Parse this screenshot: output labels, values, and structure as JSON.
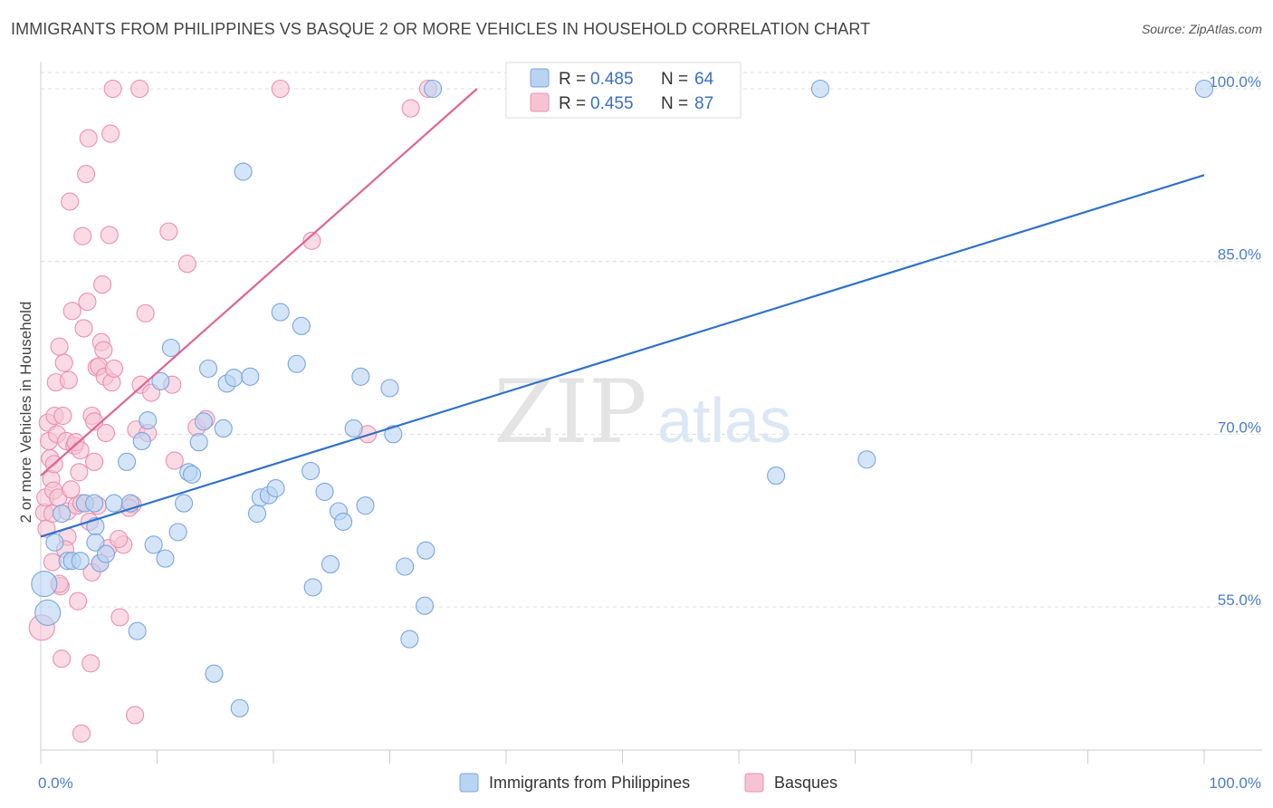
{
  "title": "IMMIGRANTS FROM PHILIPPINES VS BASQUE 2 OR MORE VEHICLES IN HOUSEHOLD CORRELATION CHART",
  "source": "Source: ZipAtlas.com",
  "watermark": {
    "zip": "ZIP",
    "atlas": "atlas"
  },
  "colors": {
    "blue_fill": "#b9d3f3",
    "blue_stroke": "#7aa6de",
    "blue_line": "#2f72c9",
    "pink_fill": "#f7c3d3",
    "pink_stroke": "#ec8fac",
    "pink_line": "#e0658f",
    "grid": "#dddddd",
    "axis_text": "#4a7cc9"
  },
  "legend": {
    "rows": [
      {
        "r_label": "R = ",
        "r_value": "0.485",
        "n_label": "N = ",
        "n_value": "64"
      },
      {
        "r_label": "R = ",
        "r_value": "0.455",
        "n_label": "N = ",
        "n_value": "87"
      }
    ]
  },
  "chart_data": {
    "type": "scatter",
    "title": "IMMIGRANTS FROM PHILIPPINES VS BASQUE 2 OR MORE VEHICLES IN HOUSEHOLD CORRELATION CHART",
    "xlabel": "",
    "ylabel": "2 or more Vehicles in Household",
    "xlim": [
      0,
      100
    ],
    "ylim": [
      40,
      101.5
    ],
    "x_tick_labels": [
      "0.0%",
      "100.0%"
    ],
    "y_ticks": [
      55,
      70,
      85,
      100
    ],
    "y_tick_labels": [
      "55.0%",
      "70.0%",
      "85.0%",
      "100.0%"
    ],
    "grid": true,
    "legend_position": "bottom",
    "series": [
      {
        "name": "Immigrants from Philippines",
        "color": "#b9d3f3",
        "trend": {
          "x": [
            0,
            100
          ],
          "y": [
            61.1,
            92.5
          ]
        },
        "points": [
          [
            0.3,
            57.0
          ],
          [
            0.6,
            54.5
          ],
          [
            1.2,
            60.6
          ],
          [
            1.8,
            63.1
          ],
          [
            2.3,
            59.0
          ],
          [
            2.7,
            59.0
          ],
          [
            3.4,
            59.0
          ],
          [
            3.8,
            64.0
          ],
          [
            4.6,
            64.0
          ],
          [
            4.7,
            62.0
          ],
          [
            4.7,
            60.6
          ],
          [
            5.1,
            58.8
          ],
          [
            5.6,
            59.6
          ],
          [
            6.3,
            64.0
          ],
          [
            7.4,
            67.6
          ],
          [
            7.7,
            64.0
          ],
          [
            8.3,
            52.9
          ],
          [
            8.7,
            69.4
          ],
          [
            9.2,
            71.2
          ],
          [
            9.7,
            60.4
          ],
          [
            10.3,
            74.6
          ],
          [
            10.7,
            59.2
          ],
          [
            11.2,
            77.5
          ],
          [
            11.8,
            61.5
          ],
          [
            12.3,
            64.0
          ],
          [
            12.7,
            66.7
          ],
          [
            13.0,
            66.5
          ],
          [
            13.6,
            69.3
          ],
          [
            14.0,
            71.1
          ],
          [
            14.4,
            75.7
          ],
          [
            14.9,
            49.2
          ],
          [
            15.7,
            70.5
          ],
          [
            16.0,
            74.4
          ],
          [
            16.6,
            74.9
          ],
          [
            17.1,
            46.2
          ],
          [
            17.4,
            92.8
          ],
          [
            18.0,
            75.0
          ],
          [
            18.6,
            63.1
          ],
          [
            18.9,
            64.5
          ],
          [
            19.6,
            64.7
          ],
          [
            20.2,
            65.3
          ],
          [
            20.6,
            80.6
          ],
          [
            22.0,
            76.1
          ],
          [
            22.4,
            79.4
          ],
          [
            23.2,
            66.8
          ],
          [
            23.4,
            56.7
          ],
          [
            24.4,
            65.0
          ],
          [
            24.9,
            58.7
          ],
          [
            25.6,
            63.3
          ],
          [
            26.0,
            62.4
          ],
          [
            26.9,
            70.5
          ],
          [
            27.5,
            75.0
          ],
          [
            27.9,
            63.8
          ],
          [
            30.0,
            74.0
          ],
          [
            30.3,
            70.0
          ],
          [
            31.3,
            58.5
          ],
          [
            31.7,
            52.2
          ],
          [
            33.0,
            55.1
          ],
          [
            33.1,
            59.9
          ],
          [
            33.7,
            100.0
          ],
          [
            63.2,
            66.4
          ],
          [
            67.0,
            100.0
          ],
          [
            71.0,
            67.8
          ],
          [
            100.0,
            100.0
          ]
        ]
      },
      {
        "name": "Basques",
        "color": "#f7c3d3",
        "trend": {
          "x": [
            0,
            37.5
          ],
          "y": [
            66.4,
            100.0
          ]
        },
        "points": [
          [
            0.1,
            53.2
          ],
          [
            0.3,
            63.2
          ],
          [
            0.4,
            64.5
          ],
          [
            0.5,
            61.8
          ],
          [
            0.6,
            71.0
          ],
          [
            0.7,
            69.4
          ],
          [
            0.8,
            67.9
          ],
          [
            0.9,
            66.1
          ],
          [
            1.0,
            63.1
          ],
          [
            1.0,
            58.9
          ],
          [
            1.1,
            65.1
          ],
          [
            1.2,
            71.6
          ],
          [
            1.3,
            74.5
          ],
          [
            1.4,
            70.0
          ],
          [
            1.5,
            64.5
          ],
          [
            1.6,
            77.6
          ],
          [
            1.7,
            56.8
          ],
          [
            1.8,
            50.5
          ],
          [
            1.9,
            71.6
          ],
          [
            2.0,
            76.2
          ],
          [
            2.2,
            69.4
          ],
          [
            2.3,
            61.1
          ],
          [
            2.3,
            63.3
          ],
          [
            2.4,
            74.7
          ],
          [
            2.5,
            90.2
          ],
          [
            2.6,
            65.2
          ],
          [
            2.7,
            80.7
          ],
          [
            2.9,
            69.0
          ],
          [
            3.0,
            69.3
          ],
          [
            3.1,
            63.8
          ],
          [
            3.2,
            55.5
          ],
          [
            3.4,
            68.6
          ],
          [
            3.5,
            64.0
          ],
          [
            3.5,
            44.0
          ],
          [
            3.6,
            87.2
          ],
          [
            3.7,
            79.2
          ],
          [
            3.9,
            92.6
          ],
          [
            4.0,
            81.5
          ],
          [
            4.1,
            95.7
          ],
          [
            4.2,
            62.4
          ],
          [
            4.3,
            50.1
          ],
          [
            4.4,
            71.6
          ],
          [
            4.6,
            71.1
          ],
          [
            4.6,
            67.6
          ],
          [
            4.8,
            75.8
          ],
          [
            4.9,
            63.8
          ],
          [
            5.0,
            75.9
          ],
          [
            5.1,
            58.8
          ],
          [
            5.2,
            78.0
          ],
          [
            5.3,
            83.0
          ],
          [
            5.4,
            77.3
          ],
          [
            5.5,
            75.0
          ],
          [
            5.6,
            70.1
          ],
          [
            5.8,
            60.1
          ],
          [
            5.9,
            87.3
          ],
          [
            6.0,
            96.1
          ],
          [
            6.1,
            74.5
          ],
          [
            6.2,
            100.0
          ],
          [
            6.3,
            75.7
          ],
          [
            6.8,
            54.1
          ],
          [
            7.1,
            60.4
          ],
          [
            7.9,
            63.9
          ],
          [
            8.1,
            45.6
          ],
          [
            8.2,
            70.4
          ],
          [
            8.5,
            100.0
          ],
          [
            8.6,
            74.3
          ],
          [
            9.0,
            80.5
          ],
          [
            9.2,
            70.1
          ],
          [
            9.5,
            73.6
          ],
          [
            11.0,
            87.6
          ],
          [
            11.3,
            74.3
          ],
          [
            11.5,
            67.7
          ],
          [
            12.6,
            84.8
          ],
          [
            13.4,
            70.6
          ],
          [
            14.2,
            71.3
          ],
          [
            20.6,
            100.0
          ],
          [
            23.3,
            86.8
          ],
          [
            28.1,
            70.0
          ],
          [
            31.8,
            98.3
          ],
          [
            33.3,
            100.0
          ],
          [
            1.15,
            67.4
          ],
          [
            1.6,
            57.0
          ],
          [
            2.1,
            60.0
          ],
          [
            3.3,
            66.7
          ],
          [
            4.4,
            58.0
          ],
          [
            6.7,
            60.9
          ],
          [
            7.6,
            63.6
          ]
        ]
      }
    ]
  },
  "bottom_legend": {
    "items": [
      {
        "label": "Immigrants from Philippines"
      },
      {
        "label": "Basques"
      }
    ]
  }
}
